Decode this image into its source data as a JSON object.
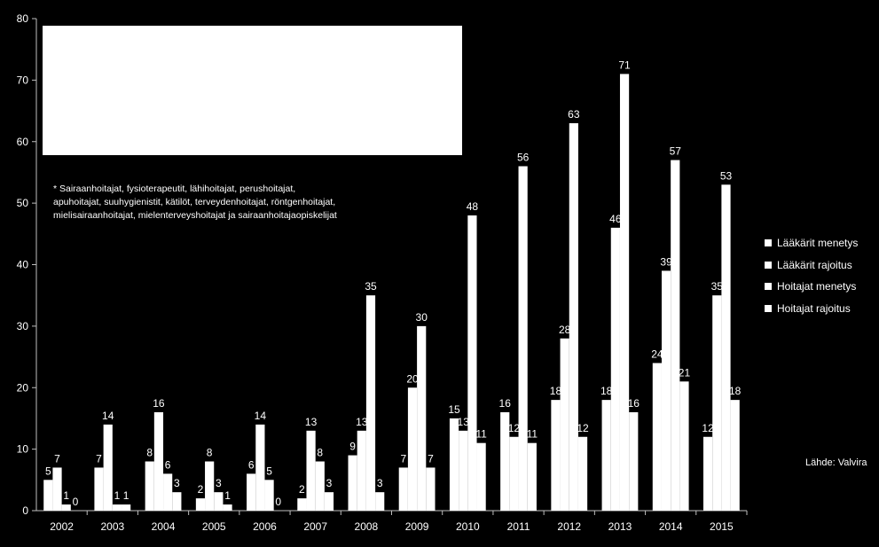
{
  "chart_data": {
    "type": "bar",
    "categories": [
      "2002",
      "2003",
      "2004",
      "2005",
      "2006",
      "2007",
      "2008",
      "2009",
      "2010",
      "2011",
      "2012",
      "2013",
      "2014",
      "2015"
    ],
    "series": [
      {
        "name": "Lääkärit menetys",
        "values": [
          5,
          7,
          8,
          2,
          6,
          2,
          9,
          7,
          15,
          16,
          18,
          18,
          24,
          12
        ]
      },
      {
        "name": "Lääkärit rajoitus",
        "values": [
          7,
          14,
          16,
          8,
          14,
          13,
          13,
          20,
          13,
          12,
          28,
          46,
          39,
          35
        ]
      },
      {
        "name": "Hoitajat menetys",
        "values": [
          1,
          1,
          6,
          3,
          5,
          8,
          35,
          30,
          48,
          56,
          63,
          71,
          57,
          53
        ]
      },
      {
        "name": "Hoitajat rajoitus",
        "values": [
          0,
          1,
          3,
          1,
          0,
          3,
          3,
          7,
          11,
          11,
          12,
          16,
          21,
          18
        ]
      }
    ],
    "ylim": [
      0,
      80
    ],
    "yticks": [
      "0",
      "10",
      "20",
      "30",
      "40",
      "50",
      "60",
      "70",
      "80"
    ],
    "grid": false,
    "legend_position": "right",
    "bar_color": "#ffffff",
    "background_color": "#000000"
  },
  "note": "* Sairaanhoitajat, fysioterapeutit, lähihoitajat, perushoitajat,\napuhoitajat, suuhygienistit, kätilöt, terveydenhoitajat, röntgenhoitajat,\nmielisairaanhoitajat, mielenterveyshoitajat ja sairaanhoitajaopiskelijat",
  "source": "Lähde: Valvira"
}
